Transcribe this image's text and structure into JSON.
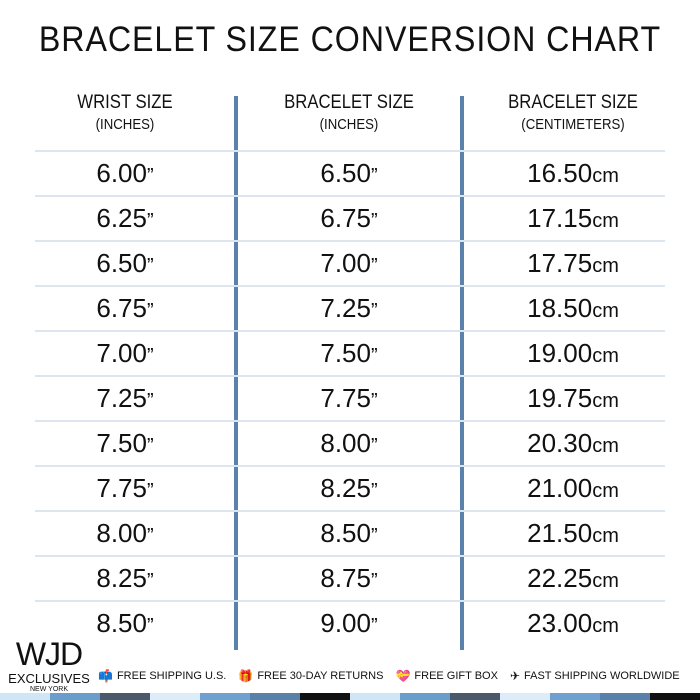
{
  "title": "BRACELET SIZE CONVERSION CHART",
  "columns": [
    {
      "label": "WRIST SIZE",
      "sub": "(INCHES)"
    },
    {
      "label": "BRACELET SIZE",
      "sub": "(INCHES)"
    },
    {
      "label": "BRACELET SIZE",
      "sub": "(CENTIMETERS)"
    }
  ],
  "rows": [
    [
      "6.00",
      "6.50",
      "16.50"
    ],
    [
      "6.25",
      "6.75",
      "17.15"
    ],
    [
      "6.50",
      "7.00",
      "17.75"
    ],
    [
      "6.75",
      "7.25",
      "18.50"
    ],
    [
      "7.00",
      "7.50",
      "19.00"
    ],
    [
      "7.25",
      "7.75",
      "19.75"
    ],
    [
      "7.50",
      "8.00",
      "20.30"
    ],
    [
      "7.75",
      "8.25",
      "21.00"
    ],
    [
      "8.00",
      "8.50",
      "21.50"
    ],
    [
      "8.25",
      "8.75",
      "22.25"
    ],
    [
      "8.50",
      "9.00",
      "23.00"
    ]
  ],
  "units": {
    "inch": "”",
    "cm": "cm"
  },
  "logo": {
    "brand": "WJD",
    "line2": "EXCLUSIVES",
    "line3": "NEW YORK"
  },
  "features": [
    {
      "icon": "mailbox-icon",
      "glyph": "📫",
      "label": "FREE SHIPPING U.S."
    },
    {
      "icon": "gift-icon",
      "glyph": "🎁",
      "label": "FREE 30-DAY RETURNS"
    },
    {
      "icon": "gift-heart-icon",
      "glyph": "💝",
      "label": "FREE GIFT BOX"
    },
    {
      "icon": "airplane-icon",
      "glyph": "✈",
      "label": "FAST SHIPPING WORLDWIDE"
    }
  ],
  "colors": {
    "divider": "#5b82ad",
    "rowline": "#dde6ef",
    "stripe": [
      "#cfe6f7",
      "#6a9ccc",
      "#4a5a6a",
      "#dcecf8",
      "#6fa0d0",
      "#5a7fa8",
      "#111111",
      "#cfe6f7",
      "#6a9ccc",
      "#4a5a6a",
      "#dcecf8",
      "#6fa0d0",
      "#5a7fa8",
      "#111111"
    ]
  }
}
